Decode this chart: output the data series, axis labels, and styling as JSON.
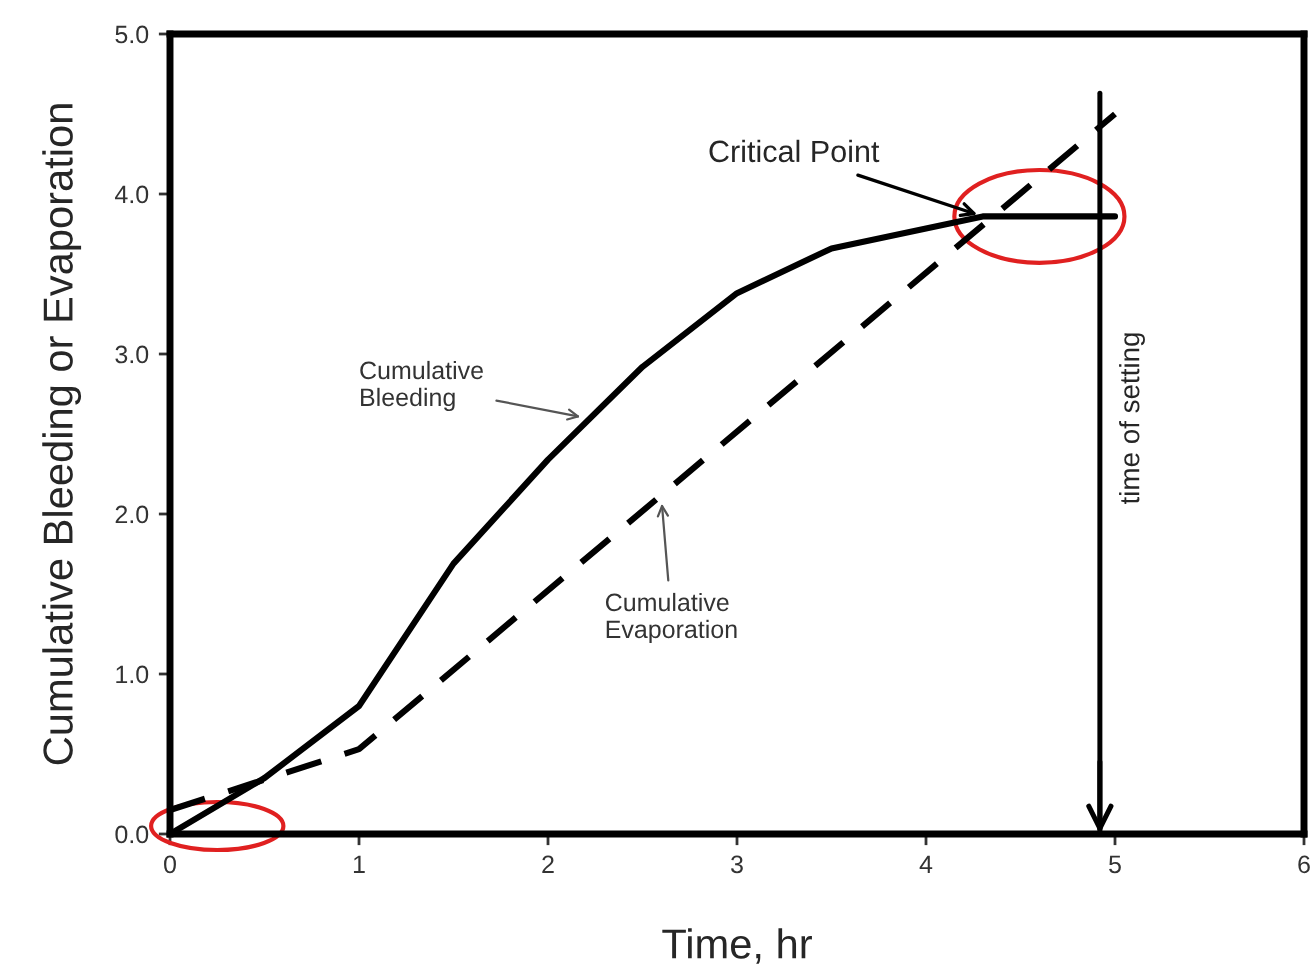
{
  "chart_data": {
    "type": "line",
    "xlabel": "Time, hr",
    "ylabel": "Cumulative Bleeding or Evaporation",
    "xlim": [
      0,
      6
    ],
    "ylim": [
      0,
      5
    ],
    "xticks": [
      0,
      1,
      2,
      3,
      4,
      5,
      6
    ],
    "yticks": [
      {
        "value": 0,
        "label": "0.0"
      },
      {
        "value": 1,
        "label": "1.0"
      },
      {
        "value": 2,
        "label": "2.0"
      },
      {
        "value": 3,
        "label": "3.0"
      },
      {
        "value": 4,
        "label": "4.0"
      },
      {
        "value": 5,
        "label": "5.0"
      }
    ],
    "grid": false,
    "legend": false,
    "marker": "none",
    "series": [
      {
        "color": "#000000",
        "line_style": "solid",
        "x": [
          0,
          0.5,
          1,
          1.5,
          2,
          2.5,
          3,
          3.5,
          4.3,
          5.0
        ],
        "values": [
          0,
          0.35,
          0.8,
          1.69,
          2.34,
          2.92,
          3.38,
          3.66,
          3.86,
          3.86
        ]
      },
      {
        "color": "#000000",
        "line_style": "dashed",
        "x": [
          0,
          1,
          5.0
        ],
        "values": [
          0.15,
          0.53,
          4.5
        ]
      }
    ],
    "annotations": [
      {
        "text": "Critical Point",
        "x": 4.3,
        "y": 3.86
      },
      {
        "text": "Cumulative\nBleeding",
        "x": 2.2,
        "y": 2.6
      },
      {
        "text": "Cumulative\nEvaporation",
        "x": 2.6,
        "y": 2.1
      }
    ],
    "ref_lines": [
      {
        "axis": "x",
        "value": 4.92,
        "label": "time of setting",
        "color": "#000000"
      }
    ]
  }
}
